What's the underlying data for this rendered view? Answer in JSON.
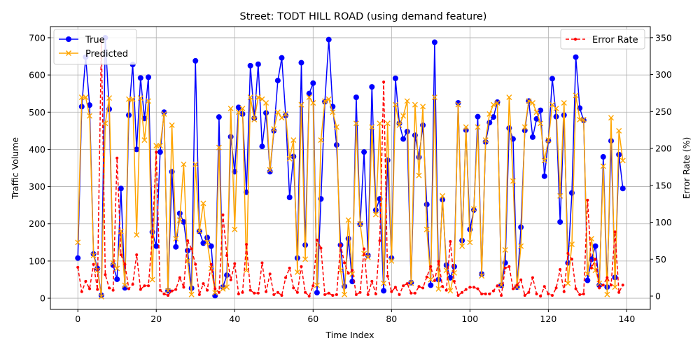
{
  "chart_data": {
    "type": "line",
    "title": "Street: TODT HILL ROAD (using demand feature)",
    "xlabel": "Time Index",
    "ylabel": "Traffic Volume",
    "y2label": "Error Rate (%)",
    "xlim": [
      -7,
      146
    ],
    "ylim": [
      -30,
      730
    ],
    "y2lim": [
      -18,
      365
    ],
    "x_ticks": [
      0,
      20,
      40,
      60,
      80,
      100,
      120,
      140
    ],
    "y_ticks": [
      0,
      100,
      200,
      300,
      400,
      500,
      600,
      700
    ],
    "y2_ticks": [
      0,
      50,
      100,
      150,
      200,
      250,
      300,
      350
    ],
    "grid": true,
    "legend_left_position": "upper-left",
    "legend_right_position": "upper-right",
    "series": [
      {
        "name": "True",
        "axis": "left",
        "color": "#0000ff",
        "marker": "circle",
        "values": [
          108,
          515,
          648,
          519,
          119,
          80,
          8,
          700,
          508,
          89,
          51,
          295,
          28,
          492,
          628,
          400,
          592,
          483,
          594,
          178,
          140,
          393,
          500,
          20,
          340,
          138,
          228,
          205,
          128,
          27,
          638,
          180,
          148,
          163,
          140,
          7,
          487,
          30,
          62,
          434,
          340,
          513,
          495,
          285,
          625,
          484,
          629,
          408,
          498,
          340,
          450,
          585,
          646,
          491,
          271,
          381,
          108,
          633,
          143,
          550,
          578,
          15,
          267,
          528,
          695,
          515,
          412,
          143,
          32,
          160,
          45,
          540,
          199,
          393,
          115,
          568,
          237,
          267,
          20,
          371,
          108,
          591,
          470,
          428,
          448,
          42,
          438,
          379,
          465,
          252,
          35,
          688,
          50,
          265,
          89,
          55,
          85,
          525,
          155,
          452,
          185,
          237,
          488,
          65,
          420,
          472,
          487,
          527,
          35,
          95,
          457,
          428,
          30,
          191,
          451,
          530,
          433,
          482,
          505,
          328,
          423,
          590,
          488,
          205,
          492,
          95,
          283,
          648,
          511,
          478,
          48,
          105,
          140,
          35,
          380,
          30,
          423,
          56,
          386,
          295
        ]
      },
      {
        "name": "Predicted",
        "axis": "left",
        "color": "#ffa500",
        "marker": "x",
        "values": [
          150,
          540,
          540,
          490,
          115,
          75,
          4,
          470,
          538,
          95,
          80,
          180,
          35,
          535,
          535,
          170,
          538,
          425,
          530,
          50,
          410,
          410,
          495,
          20,
          465,
          160,
          210,
          360,
          100,
          10,
          360,
          180,
          255,
          150,
          80,
          15,
          405,
          25,
          30,
          510,
          185,
          500,
          510,
          75,
          540,
          480,
          540,
          535,
          525,
          345,
          455,
          500,
          485,
          495,
          375,
          425,
          70,
          520,
          105,
          540,
          525,
          35,
          425,
          530,
          535,
          500,
          460,
          75,
          10,
          210,
          65,
          470,
          200,
          120,
          110,
          460,
          225,
          470,
          40,
          470,
          100,
          520,
          465,
          490,
          530,
          40,
          520,
          330,
          515,
          185,
          50,
          540,
          25,
          275,
          75,
          20,
          68,
          520,
          140,
          460,
          150,
          240,
          460,
          60,
          425,
          495,
          520,
          525,
          35,
          130,
          540,
          315,
          30,
          140,
          460,
          530,
          525,
          500,
          470,
          370,
          425,
          520,
          510,
          275,
          525,
          40,
          145,
          545,
          480,
          480,
          65,
          160,
          75,
          40,
          355,
          10,
          485,
          30,
          450,
          370
        ]
      },
      {
        "name": "Error Rate",
        "axis": "right",
        "color": "#ff0000",
        "marker": "dot",
        "dashed": true,
        "values": [
          39,
          6,
          20,
          10,
          43,
          9,
          345,
          29,
          11,
          8,
          187,
          56,
          43,
          10,
          16,
          56,
          9,
          14,
          14,
          80,
          195,
          8,
          3,
          1,
          7,
          9,
          25,
          12,
          75,
          64,
          43,
          2,
          17,
          8,
          43,
          10,
          5,
          110,
          55,
          22,
          44,
          3,
          5,
          70,
          8,
          4,
          4,
          45,
          6,
          30,
          2,
          5,
          1,
          25,
          38,
          11,
          5,
          40,
          5,
          0,
          14,
          76,
          65,
          2,
          4,
          1,
          2,
          69,
          45,
          31,
          35,
          2,
          5,
          64,
          2,
          20,
          3,
          75,
          290,
          27,
          6,
          12,
          2,
          14,
          17,
          4,
          4,
          13,
          11,
          26,
          40,
          21,
          47,
          13,
          8,
          74,
          20,
          1,
          5,
          9,
          12,
          12,
          10,
          3,
          3,
          3,
          7,
          14,
          1,
          38,
          40,
          10,
          15,
          22,
          1,
          5,
          25,
          3,
          0,
          13,
          3,
          1,
          11,
          36,
          6,
          58,
          50,
          10,
          2,
          3,
          130,
          38,
          50,
          11,
          15,
          25,
          15,
          87,
          5,
          15
        ]
      }
    ]
  }
}
